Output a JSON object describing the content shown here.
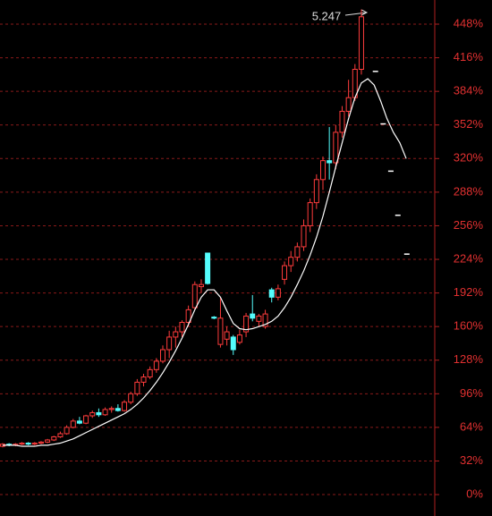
{
  "chart_data": {
    "type": "candlestick",
    "annotation": "5.247",
    "ylim": [
      -20.4,
      471
    ],
    "yticks": [
      {
        "value": 0,
        "label": "0%"
      },
      {
        "value": 32,
        "label": "32%"
      },
      {
        "value": 64,
        "label": "64%"
      },
      {
        "value": 96,
        "label": "96%"
      },
      {
        "value": 128,
        "label": "128%"
      },
      {
        "value": 160,
        "label": "160%"
      },
      {
        "value": 192,
        "label": "192%"
      },
      {
        "value": 224,
        "label": "224%"
      },
      {
        "value": 256,
        "label": "256%"
      },
      {
        "value": 288,
        "label": "288%"
      },
      {
        "value": 320,
        "label": "320%"
      },
      {
        "value": 352,
        "label": "352%"
      },
      {
        "value": 384,
        "label": "384%"
      },
      {
        "value": 416,
        "label": "416%"
      },
      {
        "value": 448,
        "label": "448%"
      }
    ],
    "grid": true,
    "up_color": "#ff3c3c",
    "down_color": "#54fcfc",
    "open": [
      46,
      48,
      47,
      48,
      49,
      48,
      49,
      50,
      52,
      55,
      58,
      64,
      70,
      68,
      75,
      78,
      76,
      81,
      82,
      80,
      88,
      96,
      107,
      112,
      119,
      127,
      138,
      150,
      155,
      164,
      178,
      198,
      230,
      169,
      143,
      148,
      150,
      145,
      155,
      172,
      165,
      160,
      195,
      188,
      205,
      218,
      226,
      236,
      256,
      278,
      300,
      318,
      316,
      345,
      365,
      378,
      405
    ],
    "high": [
      49,
      49,
      49,
      50,
      50,
      50,
      51,
      53,
      56,
      60,
      66,
      72,
      74,
      76,
      80,
      82,
      83,
      84,
      86,
      90,
      98,
      110,
      115,
      122,
      130,
      142,
      156,
      160,
      166,
      180,
      203,
      205,
      230,
      170,
      188,
      160,
      152,
      157,
      173,
      190,
      172,
      176,
      197,
      200,
      222,
      232,
      240,
      262,
      282,
      305,
      322,
      350,
      352,
      370,
      395,
      410,
      462
    ],
    "low": [
      45,
      46,
      46,
      47,
      47,
      47,
      48,
      49,
      51,
      54,
      57,
      63,
      67,
      67,
      73,
      74,
      75,
      78,
      79,
      79,
      86,
      94,
      103,
      110,
      116,
      125,
      130,
      140,
      150,
      160,
      176,
      192,
      200,
      167,
      140,
      142,
      133,
      143,
      150,
      165,
      160,
      158,
      183,
      185,
      200,
      212,
      222,
      232,
      250,
      272,
      290,
      300,
      310,
      340,
      360,
      375,
      400
    ],
    "close": [
      48,
      47,
      48,
      49,
      48,
      49,
      50,
      52,
      55,
      58,
      64,
      70,
      68,
      75,
      78,
      76,
      81,
      82,
      80,
      88,
      96,
      107,
      112,
      119,
      127,
      138,
      150,
      155,
      164,
      176,
      200,
      200,
      201,
      168,
      168,
      155,
      138,
      152,
      170,
      168,
      170,
      172,
      188,
      196,
      218,
      226,
      236,
      256,
      278,
      300,
      318,
      316,
      345,
      365,
      378,
      405,
      455
    ],
    "ma": {
      "color": "#ffffff",
      "values": [
        47,
        47,
        47,
        46,
        46,
        46,
        47,
        47,
        48,
        49,
        51,
        53,
        56,
        59,
        62,
        65,
        68,
        71,
        74,
        77,
        81,
        86,
        92,
        99,
        107,
        116,
        126,
        137,
        149,
        162,
        176,
        188,
        195,
        195,
        188,
        175,
        163,
        158,
        157,
        158,
        160,
        162,
        165,
        170,
        178,
        188,
        200,
        213,
        228,
        245,
        265,
        288,
        312,
        335,
        358,
        378,
        392,
        396,
        390,
        375,
        358,
        345,
        335,
        320
      ]
    },
    "markers": {
      "color": "#ffffff",
      "x": [
        58.2,
        59.4,
        60.6,
        61.7,
        63.1
      ],
      "values": [
        403,
        353,
        308,
        266,
        229
      ]
    }
  }
}
